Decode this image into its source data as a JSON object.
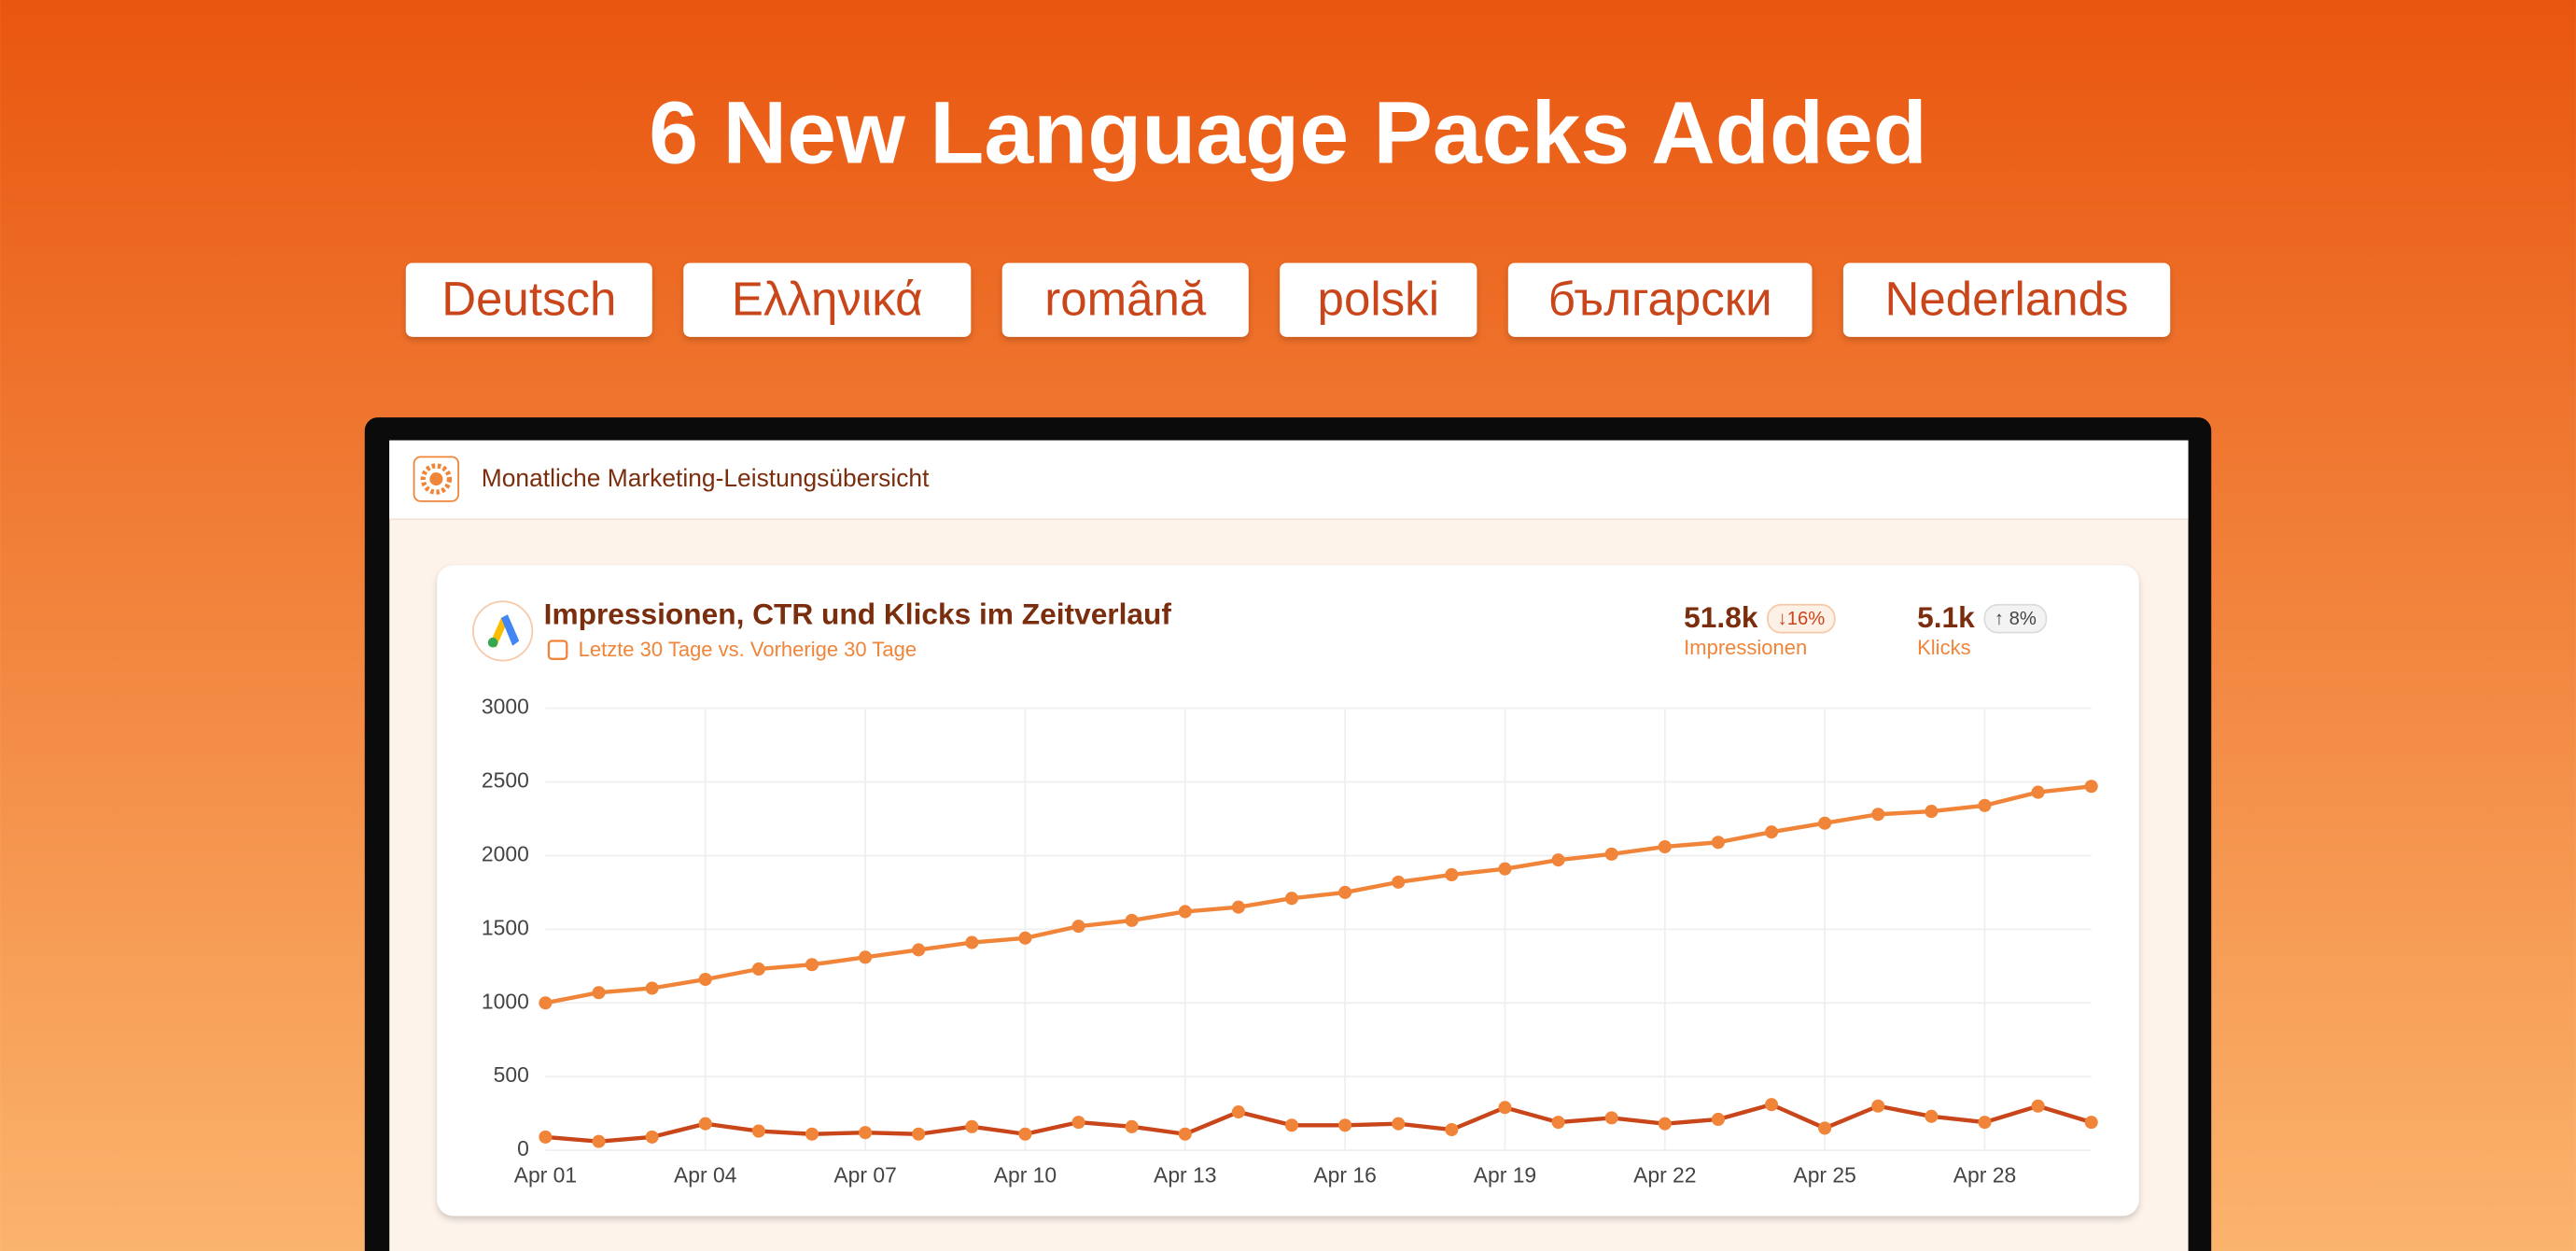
{
  "headline": "6 New Language Packs Added",
  "languages": [
    "Deutsch",
    "Ελληνικά",
    "română",
    "polski",
    "български",
    "Nederlands"
  ],
  "app_title": "Monatliche Marketing-Leistungsübersicht",
  "stats": [
    {
      "value": "51.8k",
      "change": "↓16%",
      "label": "Impressionen"
    },
    {
      "value": "5.1k",
      "change": "↑ 8%",
      "label": "Klicks"
    }
  ],
  "chart_data": {
    "type": "line",
    "title": "Impressionen, CTR und Klicks im Zeitverlauf",
    "subtitle": "Letzte 30 Tage vs. Vorherige 30 Tage",
    "categories": [
      "Apr 01",
      null,
      null,
      "Apr 04",
      null,
      null,
      "Apr 07",
      null,
      null,
      "Apr 10",
      null,
      null,
      "Apr 13",
      null,
      null,
      "Apr 16",
      null,
      null,
      "Apr 19",
      null,
      null,
      "Apr 22",
      null,
      null,
      "Apr 25",
      null,
      null,
      "Apr 28",
      null,
      null
    ],
    "series": [
      {
        "color": "#f0853a",
        "values": [
          1000,
          1070,
          1100,
          1160,
          1230,
          1260,
          1310,
          1360,
          1410,
          1440,
          1520,
          1560,
          1620,
          1650,
          1710,
          1750,
          1820,
          1870,
          1910,
          1970,
          2010,
          2060,
          2090,
          2160,
          2220,
          2280,
          2300,
          2340,
          2430,
          2470
        ]
      },
      {
        "color": "#c9461a",
        "values": [
          90,
          60,
          90,
          180,
          130,
          110,
          120,
          110,
          160,
          110,
          190,
          160,
          110,
          260,
          170,
          170,
          180,
          140,
          290,
          190,
          220,
          180,
          210,
          310,
          150,
          300,
          230,
          190,
          300,
          190
        ]
      }
    ],
    "ylim": [
      0,
      3000
    ],
    "yticks": [
      0,
      500,
      1000,
      1500,
      2000,
      2500,
      3000
    ],
    "grid": true
  }
}
